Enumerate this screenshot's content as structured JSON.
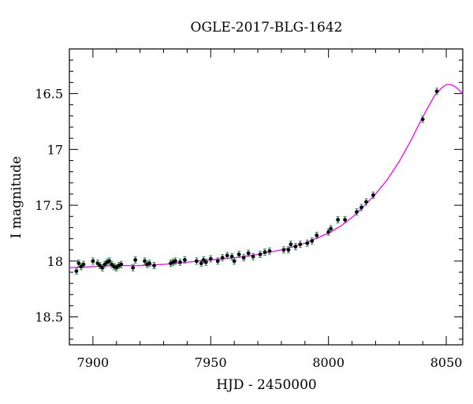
{
  "chart_data": {
    "type": "scatter",
    "title": "OGLE-2017-BLG-1642",
    "xlabel": "HJD - 2450000",
    "ylabel": "I magnitude",
    "xlim": [
      7890,
      8057
    ],
    "ylim": [
      18.75,
      16.1
    ],
    "y_inverted": true,
    "x_ticks": [
      7900,
      7950,
      8000,
      8050
    ],
    "x_tick_labels": [
      "7900",
      "7950",
      "8000",
      "8050"
    ],
    "y_ticks": [
      16.5,
      17,
      17.5,
      18,
      18.5
    ],
    "y_tick_labels": [
      "16.5",
      "17",
      "17.5",
      "18",
      "18.5"
    ],
    "grid": false,
    "colors": {
      "points": "#000000",
      "model": "#ff00ff",
      "errorbars": "#2e8b57"
    },
    "series": [
      {
        "type": "scatter",
        "x": [
          7893,
          7894,
          7895,
          7896,
          7900,
          7902,
          7903,
          7904,
          7905,
          7906,
          7907,
          7908,
          7909,
          7910,
          7911,
          7912,
          7917,
          7918,
          7922,
          7923,
          7924,
          7926,
          7933,
          7934,
          7935,
          7937,
          7939,
          7944,
          7946,
          7947,
          7948,
          7950,
          7953,
          7955,
          7957,
          7959,
          7960,
          7962,
          7964,
          7966,
          7968,
          7971,
          7973,
          7975,
          7981,
          7983,
          7984,
          7986,
          7988,
          7991,
          7993,
          7995,
          8000,
          8001,
          8004,
          8007,
          8012,
          8014,
          8016,
          8019,
          8040,
          8046
        ],
        "y": [
          18.09,
          18.02,
          18.05,
          18.03,
          18.0,
          18.02,
          18.04,
          18.06,
          18.03,
          18.01,
          18.0,
          18.03,
          18.05,
          18.06,
          18.04,
          18.03,
          18.06,
          17.99,
          18.0,
          18.03,
          18.02,
          18.04,
          18.02,
          18.01,
          18.0,
          18.01,
          17.99,
          18.0,
          18.02,
          17.99,
          18.01,
          17.98,
          18.0,
          17.97,
          17.95,
          17.96,
          18.0,
          17.94,
          17.97,
          17.93,
          17.96,
          17.94,
          17.92,
          17.91,
          17.9,
          17.9,
          17.85,
          17.87,
          17.85,
          17.84,
          17.82,
          17.77,
          17.74,
          17.71,
          17.63,
          17.63,
          17.56,
          17.52,
          17.47,
          17.41,
          16.73,
          16.48
        ]
      },
      {
        "type": "line",
        "x": [
          7890,
          7900,
          7910,
          7920,
          7930,
          7940,
          7950,
          7960,
          7970,
          7980,
          7990,
          8000,
          8005,
          8010,
          8015,
          8020,
          8025,
          8030,
          8035,
          8040,
          8045,
          8048,
          8050,
          8052,
          8054,
          8057
        ],
        "y": [
          18.06,
          18.05,
          18.04,
          18.04,
          18.03,
          18.01,
          17.99,
          17.97,
          17.94,
          17.9,
          17.84,
          17.75,
          17.69,
          17.61,
          17.51,
          17.4,
          17.27,
          17.11,
          16.92,
          16.71,
          16.52,
          16.45,
          16.42,
          16.42,
          16.44,
          16.5
        ]
      }
    ]
  }
}
